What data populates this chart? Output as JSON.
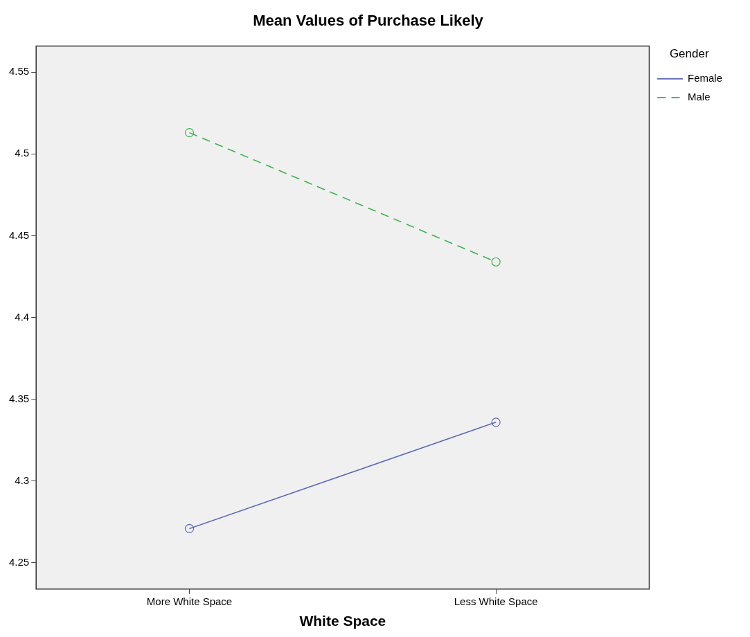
{
  "chart_data": {
    "type": "line",
    "title": "Mean Values of Purchase Likely",
    "xlabel": "White Space",
    "legend_title": "Gender",
    "categories": [
      "More White Space",
      "Less White Space"
    ],
    "series": [
      {
        "name": "Female",
        "color": "#5c68b8",
        "values": [
          4.271,
          4.336
        ],
        "line_style": "solid"
      },
      {
        "name": "Male",
        "color": "#3cb44b",
        "values": [
          4.513,
          4.434
        ],
        "line_style": "dashed"
      }
    ],
    "ylim": [
      4.234,
      4.566
    ],
    "yticks": [
      4.25,
      4.3,
      4.35,
      4.4,
      4.45,
      4.5,
      4.55
    ],
    "legend": "right",
    "marker": "circle"
  }
}
